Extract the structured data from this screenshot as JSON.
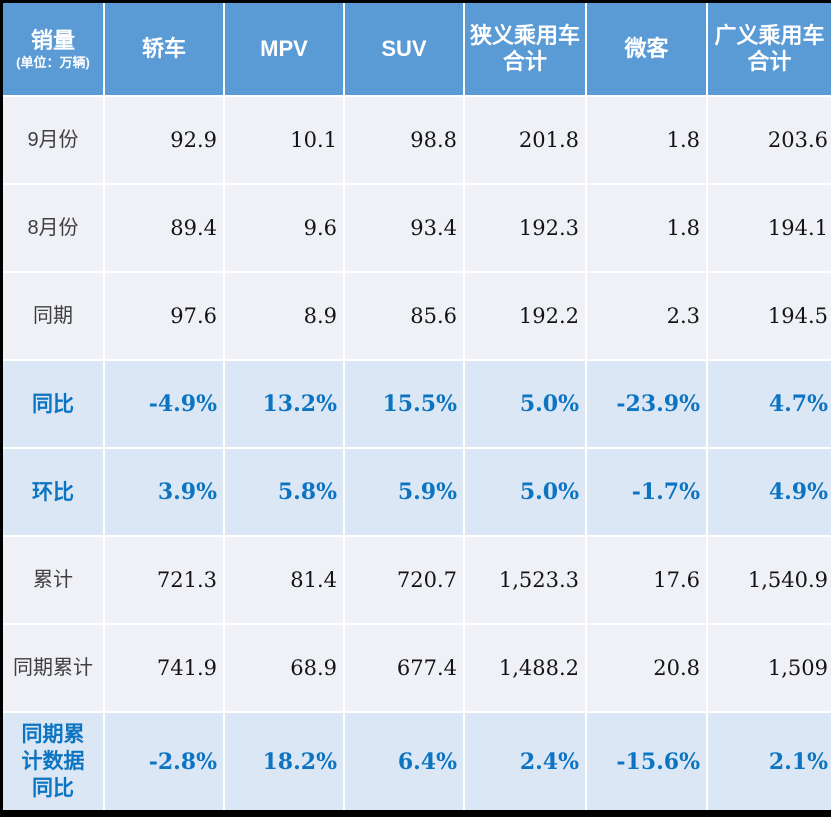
{
  "chart_data": {
    "type": "table",
    "title": "销量",
    "unit_note": "(单位：万辆)",
    "columns": [
      "轿车",
      "MPV",
      "SUV",
      "狭义乘用车\n合计",
      "微客",
      "广义乘用车\n合计"
    ],
    "rows": [
      {
        "label": "9月份",
        "style": "normal",
        "values": [
          "92.9",
          "10.1",
          "98.8",
          "201.8",
          "1.8",
          "203.6"
        ]
      },
      {
        "label": "8月份",
        "style": "normal",
        "values": [
          "89.4",
          "9.6",
          "93.4",
          "192.3",
          "1.8",
          "194.1"
        ]
      },
      {
        "label": "同期",
        "style": "normal",
        "values": [
          "97.6",
          "8.9",
          "85.6",
          "192.2",
          "2.3",
          "194.5"
        ]
      },
      {
        "label": "同比",
        "style": "highlight",
        "values": [
          "-4.9%",
          "13.2%",
          "15.5%",
          "5.0%",
          "-23.9%",
          "4.7%"
        ]
      },
      {
        "label": "环比",
        "style": "highlight",
        "values": [
          "3.9%",
          "5.8%",
          "5.9%",
          "5.0%",
          "-1.7%",
          "4.9%"
        ]
      },
      {
        "label": "累计",
        "style": "normal",
        "values": [
          "721.3",
          "81.4",
          "720.7",
          "1,523.3",
          "17.6",
          "1,540.9"
        ]
      },
      {
        "label": "同期累计",
        "style": "normal",
        "values": [
          "741.9",
          "68.9",
          "677.4",
          "1,488.2",
          "20.8",
          "1,509"
        ]
      },
      {
        "label": "同期累\n计数据\n同比",
        "style": "highlight",
        "values": [
          "-2.8%",
          "18.2%",
          "6.4%",
          "2.4%",
          "-15.6%",
          "2.1%"
        ]
      }
    ],
    "colors": {
      "header_bg": "#5B9BD5",
      "header_text": "#FFFFFF",
      "row_bg": "#EFF1F6",
      "highlight_row_bg": "#DBE7F4",
      "accent_text": "#0D74C2",
      "value_text": "#141414",
      "label_text": "#3F3F3F",
      "gridline": "#FFFFFF",
      "frame": "#000000"
    }
  }
}
